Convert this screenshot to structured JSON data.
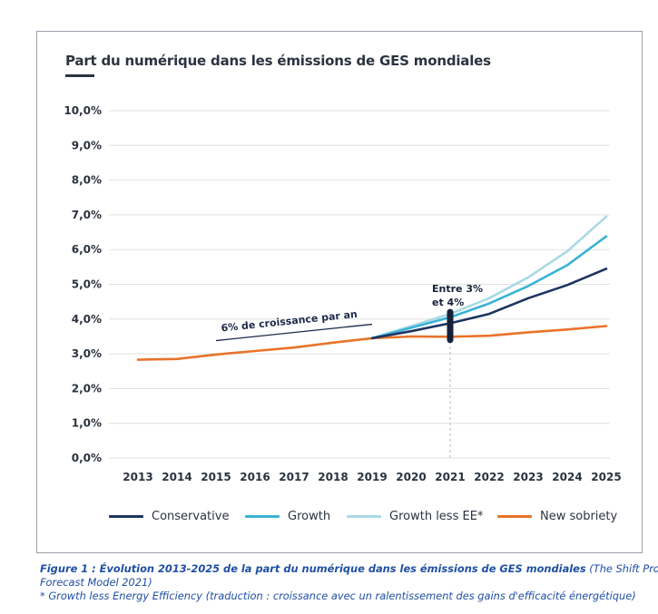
{
  "header": {
    "title": "Part du numérique dans les émissions de GES mondiales"
  },
  "chart_data": {
    "type": "line",
    "title": "Part du numérique dans les émissions de GES mondiales",
    "xlabel": "",
    "ylabel": "",
    "x": [
      2013,
      2014,
      2015,
      2016,
      2017,
      2018,
      2019,
      2020,
      2021,
      2022,
      2023,
      2024,
      2025
    ],
    "x_tick_labels": [
      "2013",
      "2014",
      "2015",
      "2016",
      "2017",
      "2018",
      "2019",
      "2020",
      "2021",
      "2022",
      "2023",
      "2024",
      "2025"
    ],
    "ylim": [
      0,
      10
    ],
    "y_ticks": [
      0,
      1,
      2,
      3,
      4,
      5,
      6,
      7,
      8,
      9,
      10
    ],
    "y_tick_labels": [
      "0,0%",
      "1,0%",
      "2,0%",
      "3,0%",
      "4,0%",
      "5,0%",
      "6,0%",
      "7,0%",
      "8,0%",
      "9,0%",
      "10,0%"
    ],
    "grid": "horizontal",
    "legend_position": "bottom",
    "series": [
      {
        "name": "New sobriety",
        "color": "#e8732a",
        "points": [
          [
            2013,
            2.83
          ],
          [
            2014,
            2.85
          ],
          [
            2015,
            2.98
          ],
          [
            2016,
            3.08
          ],
          [
            2017,
            3.18
          ],
          [
            2018,
            3.32
          ],
          [
            2019,
            3.45
          ],
          [
            2020,
            3.5
          ],
          [
            2021,
            3.49
          ],
          [
            2022,
            3.52
          ],
          [
            2023,
            3.62
          ],
          [
            2024,
            3.7
          ],
          [
            2025,
            3.8
          ]
        ]
      },
      {
        "name": "Growth less EE*",
        "color": "#a9d9e4",
        "points": [
          [
            2019,
            3.45
          ],
          [
            2020,
            3.8
          ],
          [
            2021,
            4.15
          ],
          [
            2022,
            4.6
          ],
          [
            2023,
            5.2
          ],
          [
            2024,
            5.95
          ],
          [
            2025,
            6.95
          ]
        ]
      },
      {
        "name": "Growth",
        "color": "#39b2d6",
        "points": [
          [
            2019,
            3.45
          ],
          [
            2020,
            3.75
          ],
          [
            2021,
            4.05
          ],
          [
            2022,
            4.45
          ],
          [
            2023,
            4.95
          ],
          [
            2024,
            5.55
          ],
          [
            2025,
            6.38
          ]
        ]
      },
      {
        "name": "Conservative",
        "color": "#1c3461",
        "points": [
          [
            2019,
            3.45
          ],
          [
            2020,
            3.65
          ],
          [
            2021,
            3.88
          ],
          [
            2022,
            4.15
          ],
          [
            2023,
            4.6
          ],
          [
            2024,
            4.98
          ],
          [
            2025,
            5.45
          ]
        ]
      }
    ],
    "annotations": {
      "trend_label": "6% de croissance par an",
      "trend_line": {
        "from": [
          2015,
          3.38
        ],
        "to": [
          2019,
          3.85
        ]
      },
      "range_label_1": "Entre 3%",
      "range_label_2": "et 4%",
      "range_x": 2021,
      "range": [
        3.4,
        4.2
      ]
    }
  },
  "legend": [
    {
      "label": "Conservative",
      "color": "#1c3461"
    },
    {
      "label": "Growth",
      "color": "#39b2d6"
    },
    {
      "label": "Growth less EE*",
      "color": "#a9d9e4"
    },
    {
      "label": "New sobriety",
      "color": "#e8732a"
    }
  ],
  "caption": {
    "bold": "Figure 1 : Évolution 2013-2025 de la part du numérique dans les émissions de GES mondiales",
    "source_line1": " (The Shift Project –",
    "source_line2": "Forecast Model 2021)",
    "footnote": "* Growth less Energy Efficiency (traduction : croissance avec un ralentissement des gains d'efficacité énergétique)"
  }
}
